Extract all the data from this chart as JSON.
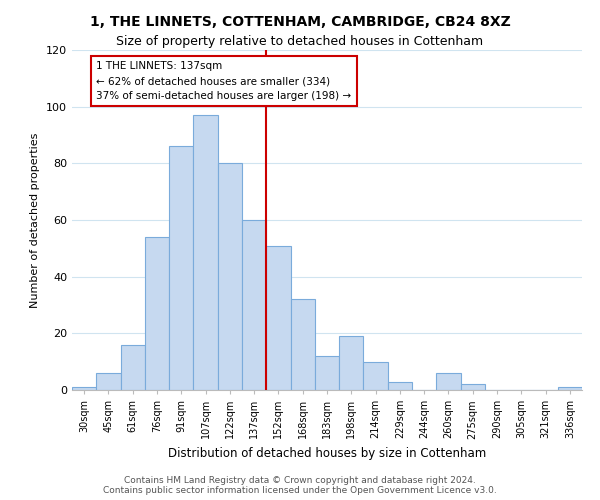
{
  "title1": "1, THE LINNETS, COTTENHAM, CAMBRIDGE, CB24 8XZ",
  "title2": "Size of property relative to detached houses in Cottenham",
  "xlabel": "Distribution of detached houses by size in Cottenham",
  "ylabel": "Number of detached properties",
  "bar_labels": [
    "30sqm",
    "45sqm",
    "61sqm",
    "76sqm",
    "91sqm",
    "107sqm",
    "122sqm",
    "137sqm",
    "152sqm",
    "168sqm",
    "183sqm",
    "198sqm",
    "214sqm",
    "229sqm",
    "244sqm",
    "260sqm",
    "275sqm",
    "290sqm",
    "305sqm",
    "321sqm",
    "336sqm"
  ],
  "bar_heights": [
    1,
    6,
    16,
    54,
    86,
    97,
    80,
    60,
    51,
    32,
    12,
    19,
    10,
    3,
    0,
    6,
    2,
    0,
    0,
    0,
    1
  ],
  "bar_color": "#c6d9f0",
  "bar_edge_color": "#7aabdb",
  "vline_index": 7,
  "vline_color": "#cc0000",
  "annotation_title": "1 THE LINNETS: 137sqm",
  "annotation_line1": "← 62% of detached houses are smaller (334)",
  "annotation_line2": "37% of semi-detached houses are larger (198) →",
  "annotation_box_color": "#ffffff",
  "annotation_box_edge": "#cc0000",
  "ylim": [
    0,
    120
  ],
  "yticks": [
    0,
    20,
    40,
    60,
    80,
    100,
    120
  ],
  "footer1": "Contains HM Land Registry data © Crown copyright and database right 2024.",
  "footer2": "Contains public sector information licensed under the Open Government Licence v3.0.",
  "bg_color": "#ffffff",
  "grid_color": "#d0e4f0"
}
